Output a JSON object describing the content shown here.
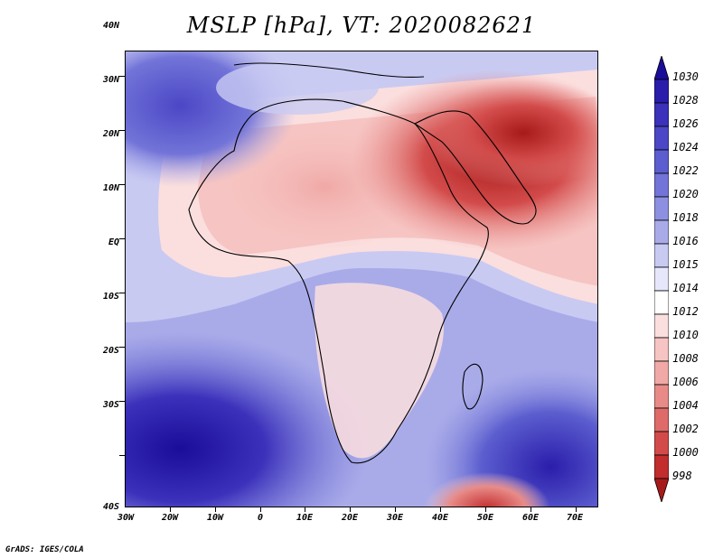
{
  "title": "MSLP [hPa], VT: 2020082621",
  "footer": "GrADS: IGES/COLA",
  "axes": {
    "lat_labels": [
      "40N",
      "30N",
      "20N",
      "10N",
      "EQ",
      "10S",
      "20S",
      "30S",
      "40S"
    ],
    "lon_labels": [
      "30W",
      "20W",
      "10W",
      "0",
      "10E",
      "20E",
      "30E",
      "40E",
      "50E",
      "60E",
      "70E"
    ]
  },
  "colorbar": {
    "labels": [
      "1030",
      "1028",
      "1026",
      "1024",
      "1022",
      "1020",
      "1018",
      "1016",
      "1015",
      "1014",
      "1012",
      "1010",
      "1008",
      "1006",
      "1004",
      "1002",
      "1000",
      "998"
    ],
    "colors": [
      "#1a0d99",
      "#2a1dab",
      "#3b31bb",
      "#4b47c6",
      "#5c5ecf",
      "#7374d8",
      "#8d8fe1",
      "#a9abe9",
      "#c9caf2",
      "#e6e7fa",
      "#ffffff",
      "#fbdede",
      "#f6c4c2",
      "#f0a9a6",
      "#e88b88",
      "#de6b69",
      "#d24b4a",
      "#c22d2d",
      "#a81a1a"
    ]
  }
}
